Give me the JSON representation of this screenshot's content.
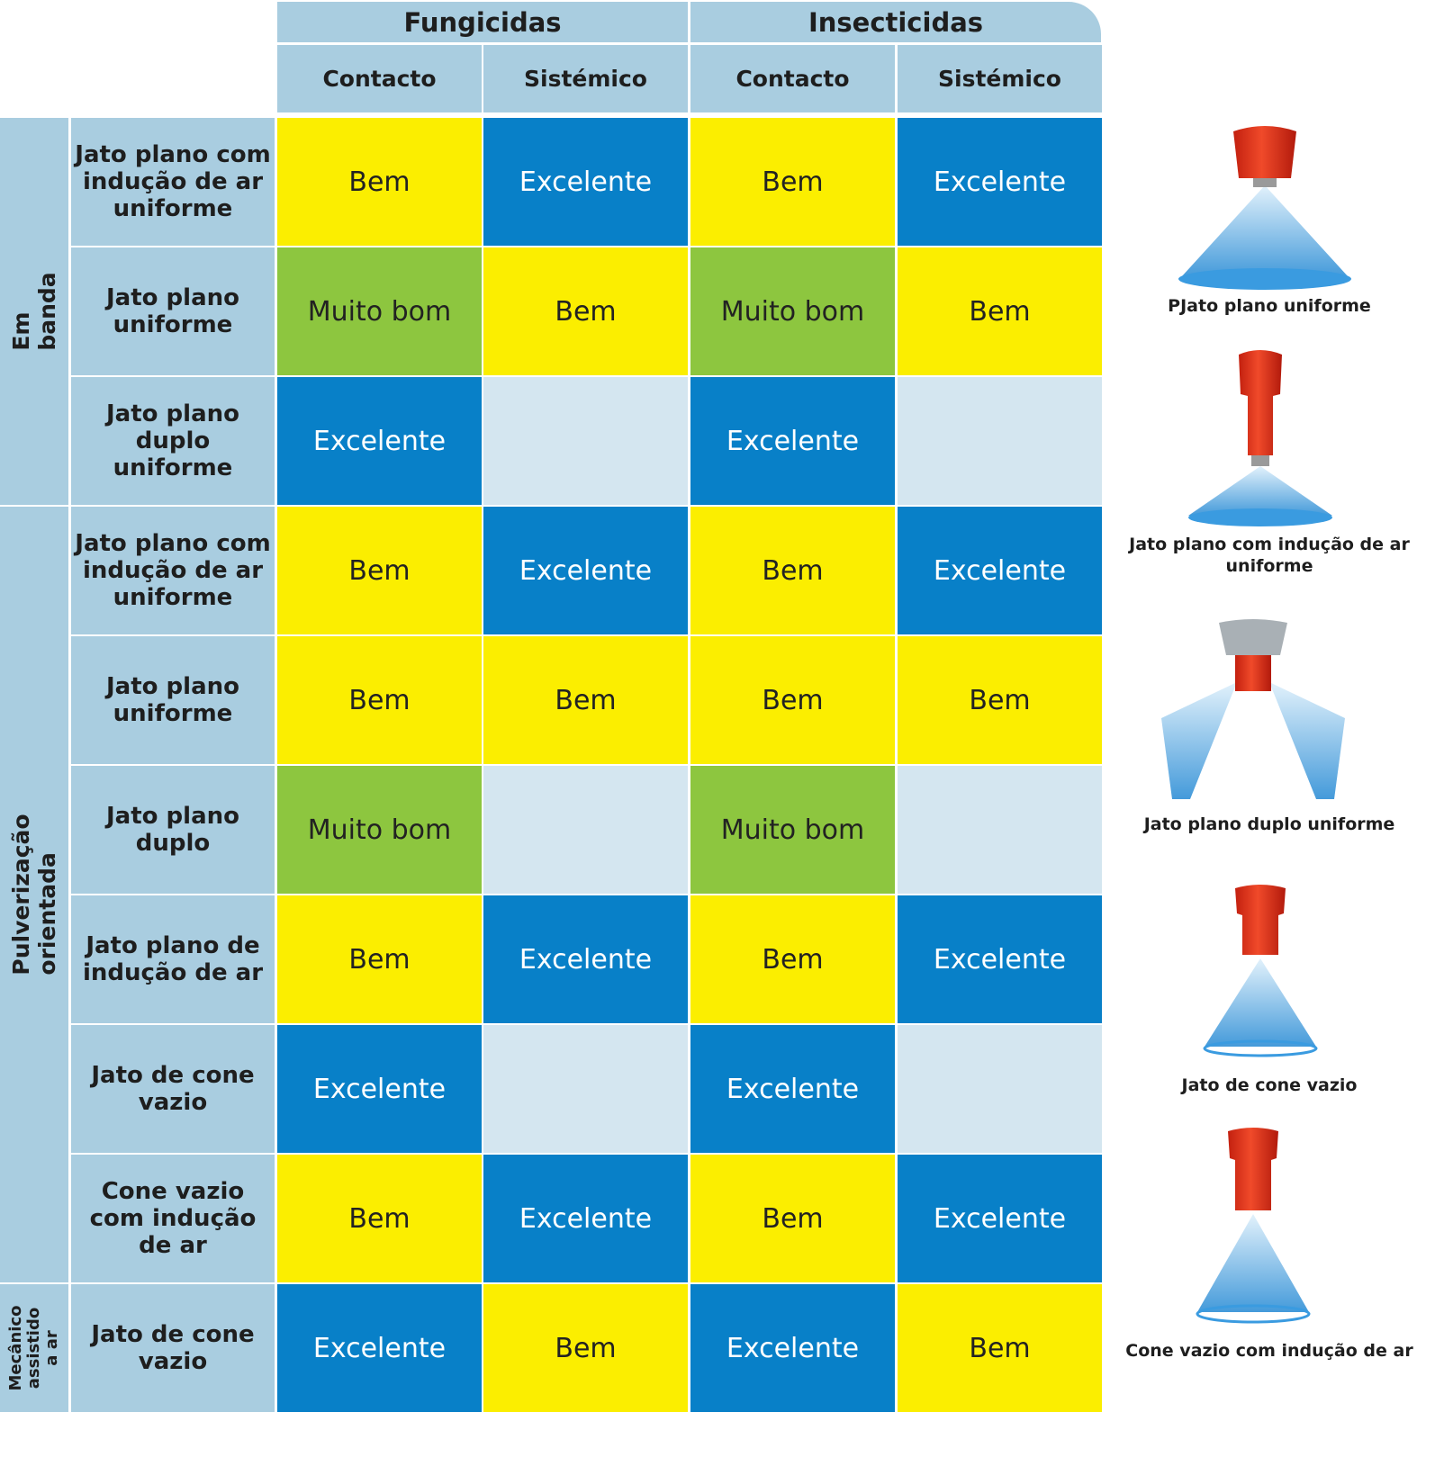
{
  "header": {
    "groups": [
      "Fungicidas",
      "Insecticidas"
    ],
    "subheaders": [
      "Contacto",
      "Sistémico",
      "Contacto",
      "Sistémico"
    ]
  },
  "row_groups": [
    {
      "label": "Em banda"
    },
    {
      "label": "Pulverização orientada"
    },
    {
      "label": "Mecânico\nassistido a ar"
    }
  ],
  "legend_ratings": {
    "bem": "Bem",
    "muito_bom": "Muito bom",
    "excelente": "Excelente"
  },
  "colors": {
    "header_bg": "#a9cde0",
    "bem": "#fbee00",
    "muito_bom": "#8dc63f",
    "excelente": "#0880c8",
    "not_applicable": "#d4e6f0"
  },
  "rows": [
    {
      "label": "Jato plano com\nindução de ar\nuniforme",
      "group": 0,
      "cells": [
        "Bem",
        "Excelente",
        "Bem",
        "Excelente"
      ]
    },
    {
      "label": "Jato plano\nuniforme",
      "group": 0,
      "cells": [
        "Muito bom",
        "Bem",
        "Muito bom",
        "Bem"
      ]
    },
    {
      "label": "Jato plano\nduplo\nuniforme",
      "group": 0,
      "cells": [
        "Excelente",
        "",
        "Excelente",
        ""
      ]
    },
    {
      "label": "Jato plano com\nindução de ar\nuniforme",
      "group": 1,
      "cells": [
        "Bem",
        "Excelente",
        "Bem",
        "Excelente"
      ]
    },
    {
      "label": "Jato plano\nuniforme",
      "group": 1,
      "cells": [
        "Bem",
        "Bem",
        "Bem",
        "Bem"
      ]
    },
    {
      "label": "Jato plano\nduplo",
      "group": 1,
      "cells": [
        "Muito bom",
        "",
        "Muito bom",
        ""
      ]
    },
    {
      "label": "Jato plano de\nindução de ar",
      "group": 1,
      "cells": [
        "Bem",
        "Excelente",
        "Bem",
        "Excelente"
      ]
    },
    {
      "label": "Jato de cone\nvazio",
      "group": 1,
      "cells": [
        "Excelente",
        "",
        "Excelente",
        ""
      ]
    },
    {
      "label": "Cone vazio\ncom indução\nde ar",
      "group": 1,
      "cells": [
        "Bem",
        "Excelente",
        "Bem",
        "Excelente"
      ]
    },
    {
      "label": "Jato de cone\nvazio",
      "group": 2,
      "cells": [
        "Excelente",
        "Bem",
        "Excelente",
        "Bem"
      ]
    }
  ],
  "nozzles": [
    {
      "caption": "PJato plano uniforme",
      "icon": "flat-fan-nozzle-icon"
    },
    {
      "caption": "Jato plano com indução de ar uniforme",
      "icon": "air-induction-flat-fan-nozzle-icon"
    },
    {
      "caption": "Jato plano duplo uniforme",
      "icon": "twin-flat-fan-nozzle-icon"
    },
    {
      "caption": "Jato de cone vazio",
      "icon": "hollow-cone-nozzle-icon"
    },
    {
      "caption": "Cone vazio com indução de ar",
      "icon": "air-induction-hollow-cone-nozzle-icon"
    }
  ]
}
